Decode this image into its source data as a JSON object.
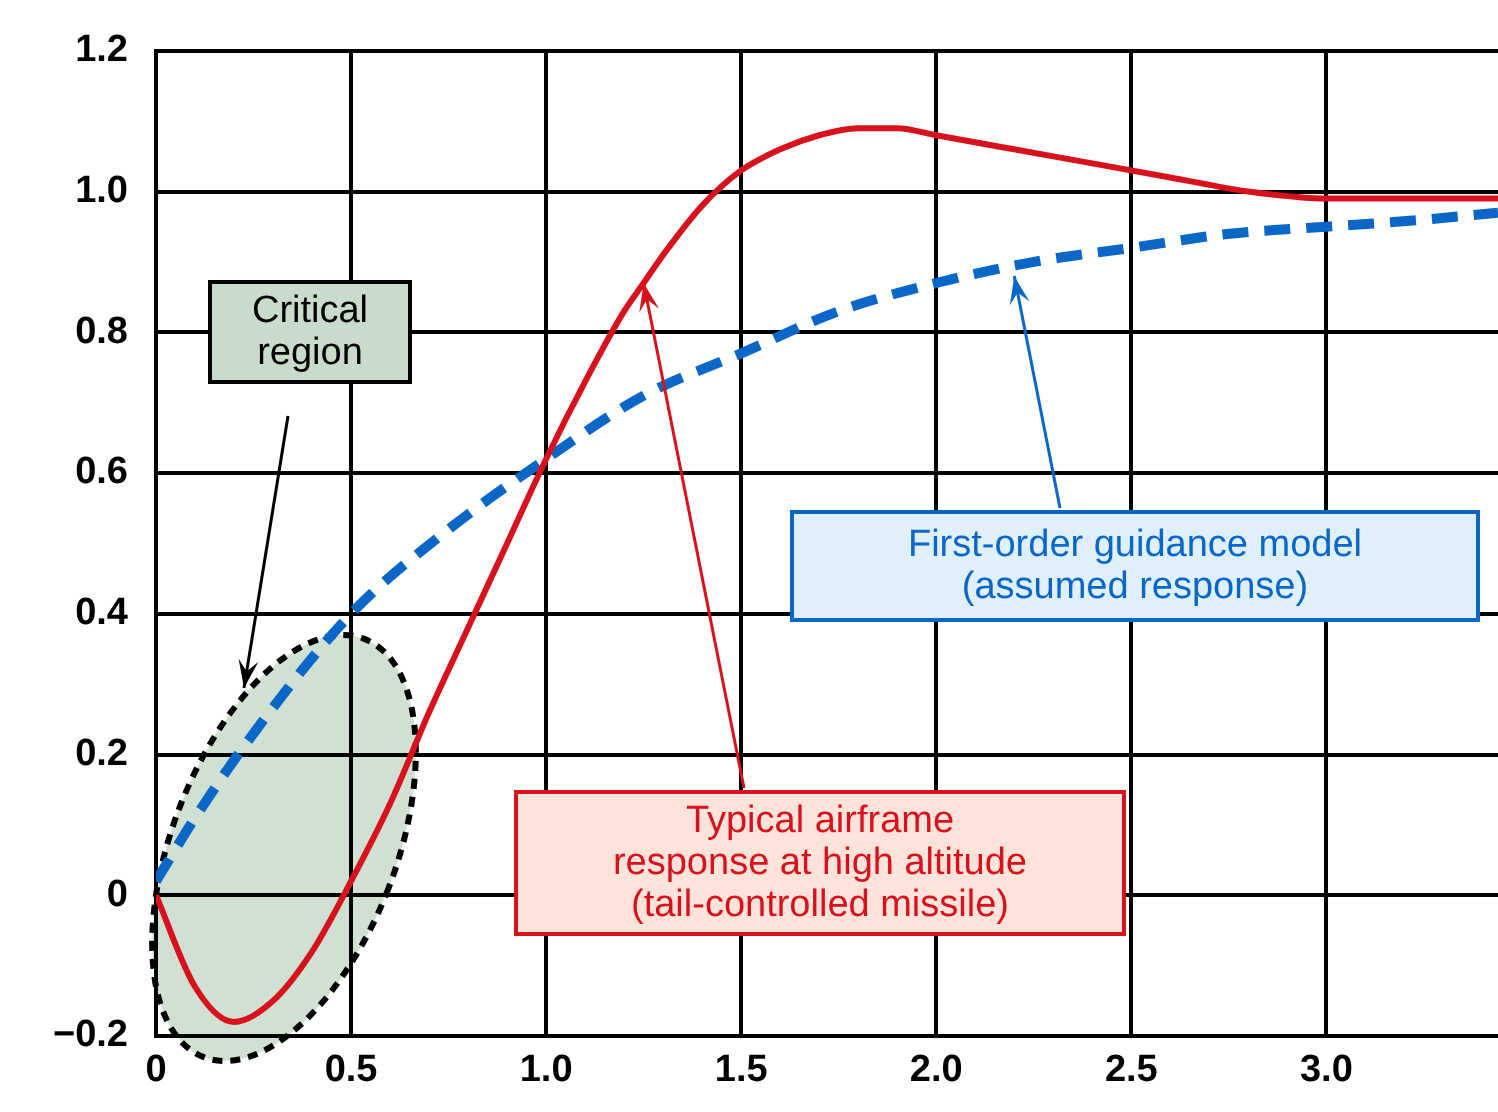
{
  "chart_data": {
    "type": "line",
    "xlim": [
      0,
      3.44
    ],
    "xticks": [
      0,
      0.5,
      {
        "value": 1,
        "label": "1.0"
      },
      1.5,
      {
        "value": 2,
        "label": "2.0"
      },
      2.5,
      {
        "value": 3,
        "label": "3.0"
      }
    ],
    "ylim": [
      -0.2,
      1.2
    ],
    "yticks": [
      {
        "value": -0.2,
        "label": "−0.2"
      },
      0,
      0.2,
      0.4,
      0.6,
      0.8,
      {
        "value": 1,
        "label": "1.0"
      },
      1.2
    ],
    "grid": true,
    "legend": false,
    "series": [
      {
        "color": "#d8121c",
        "line_style": "solid",
        "x": [
          0,
          0.1,
          0.2,
          0.3,
          0.4,
          0.5,
          0.6,
          0.7,
          0.8,
          0.9,
          1.0,
          1.1,
          1.2,
          1.25,
          1.3,
          1.4,
          1.5,
          1.6,
          1.7,
          1.8,
          1.9,
          2.0,
          2.2,
          2.4,
          2.6,
          2.8,
          3.0,
          3.2,
          3.44
        ],
        "values": [
          0,
          -0.13,
          -0.18,
          -0.15,
          -0.08,
          0.02,
          0.13,
          0.26,
          0.38,
          0.5,
          0.62,
          0.73,
          0.83,
          0.87,
          0.91,
          0.98,
          1.03,
          1.06,
          1.08,
          1.09,
          1.09,
          1.08,
          1.06,
          1.04,
          1.02,
          1.0,
          0.99,
          0.99,
          0.99
        ]
      },
      {
        "color": "#0a67c8",
        "line_style": "dashed",
        "x": [
          0,
          0.1,
          0.25,
          0.5,
          0.75,
          1.0,
          1.25,
          1.5,
          1.75,
          2.0,
          2.25,
          2.5,
          2.75,
          3.0,
          3.25,
          3.44
        ],
        "values": [
          0.02,
          0.11,
          0.23,
          0.4,
          0.52,
          0.62,
          0.71,
          0.77,
          0.83,
          0.87,
          0.9,
          0.92,
          0.94,
          0.95,
          0.96,
          0.97
        ]
      }
    ],
    "annotations": [
      "Critical region",
      {
        "text": "Typical airframe response at high altitude (tail-controlled missile)",
        "x": 1.25,
        "y": 0.87
      },
      {
        "text": "First-order guidance model (assumed response)",
        "x": 2.2,
        "y": 0.88
      }
    ]
  }
}
